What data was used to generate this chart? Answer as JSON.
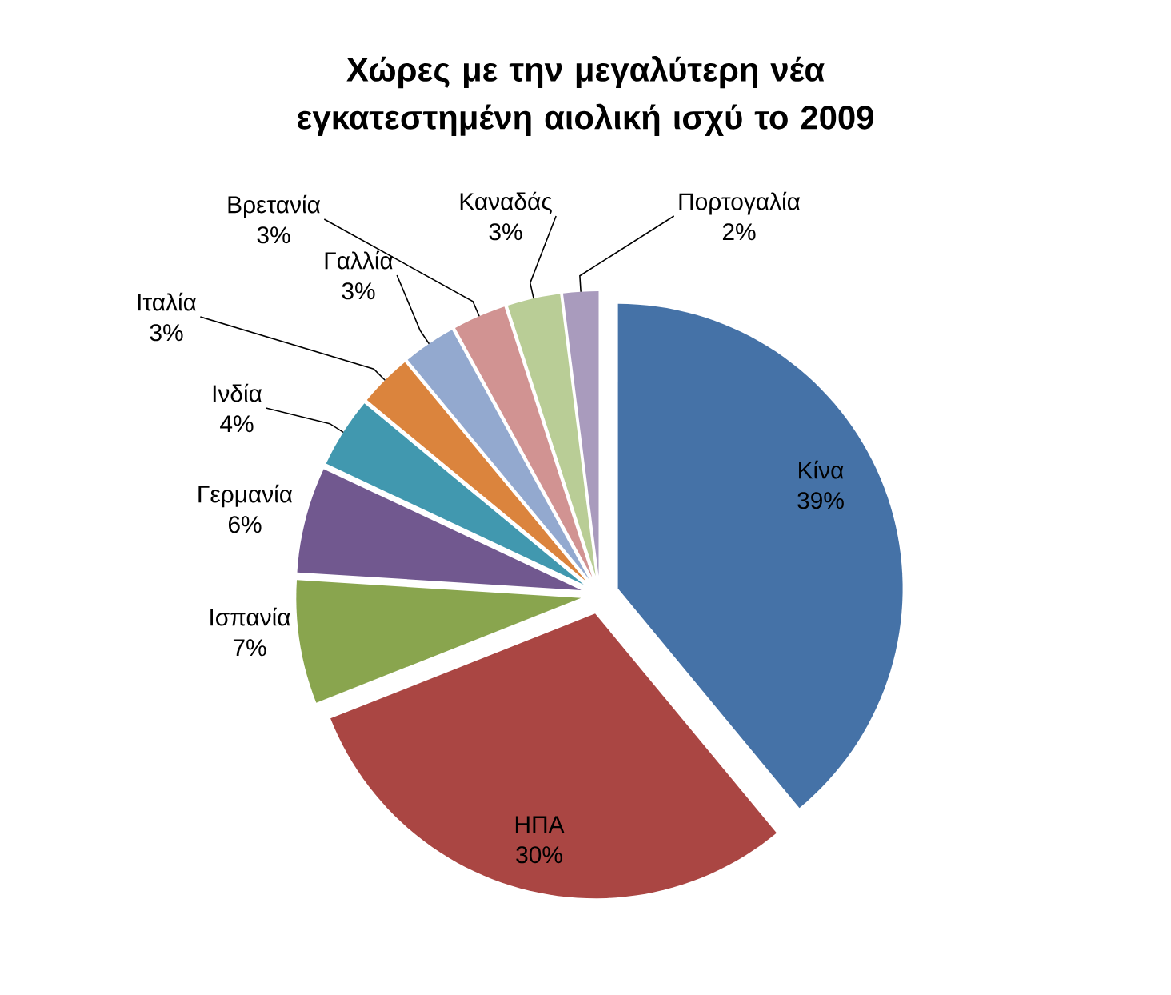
{
  "chart_data": {
    "type": "pie",
    "title": "Χώρες με την μεγαλύτερη νέα εγκατεστημένη αιολική ισχύ το 2009",
    "categories": [
      "Κίνα",
      "ΗΠΑ",
      "Ισπανία",
      "Γερμανία",
      "Ινδία",
      "Ιταλία",
      "Γαλλία",
      "Βρετανία",
      "Καναδάς",
      "Πορτογαλία"
    ],
    "values": [
      39,
      30,
      7,
      6,
      4,
      3,
      3,
      3,
      3,
      2
    ],
    "value_labels": [
      "39%",
      "30%",
      "7%",
      "6%",
      "4%",
      "3%",
      "3%",
      "3%",
      "3%",
      "2%"
    ],
    "colors": [
      "#4572a7",
      "#aa4643",
      "#89a54e",
      "#71588f",
      "#4198af",
      "#db843d",
      "#93a9cf",
      "#d19392",
      "#b9cd96",
      "#a99bbd"
    ]
  }
}
